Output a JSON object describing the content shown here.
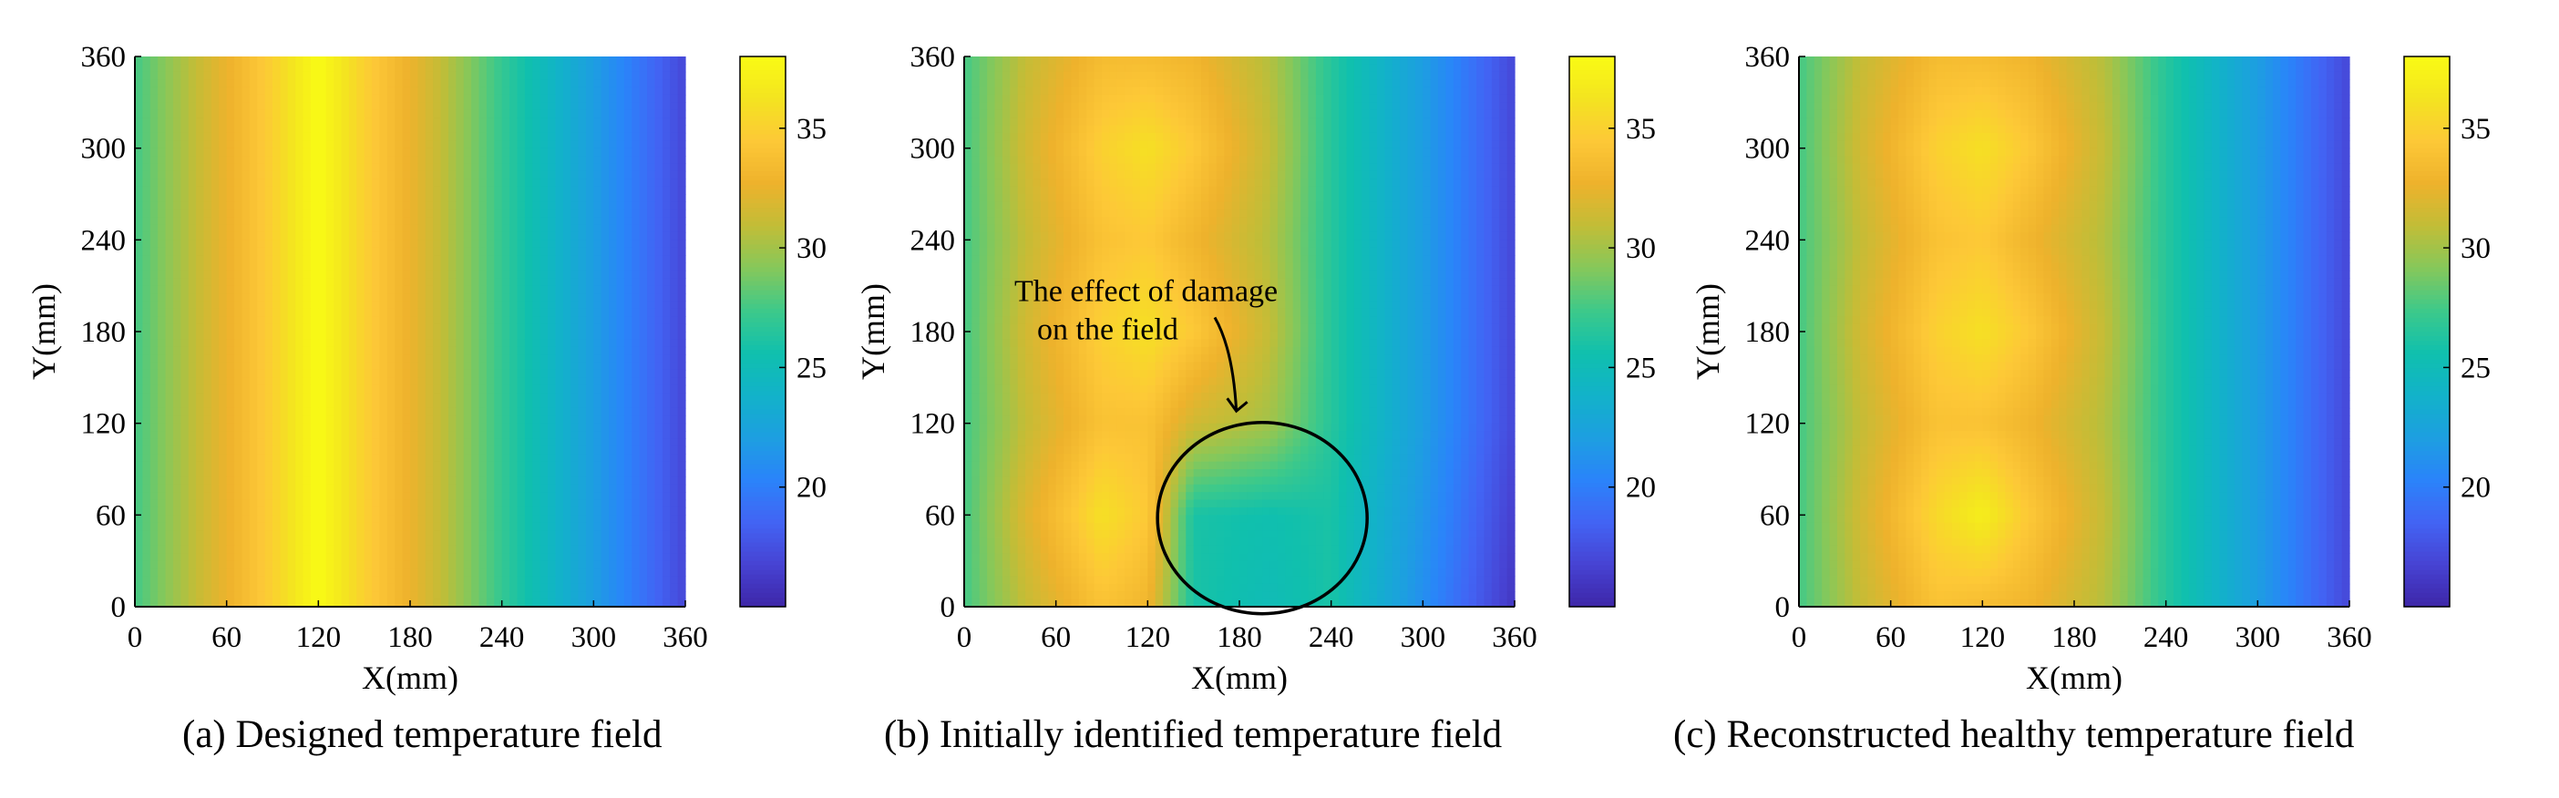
{
  "colormap": [
    "#3e26a8",
    "#4743d3",
    "#4264f4",
    "#2a84fa",
    "#1d9fe0",
    "#12b2c9",
    "#10c0ad",
    "#3ec98a",
    "#86c85a",
    "#c2bd37",
    "#eeb22c",
    "#fdc837",
    "#f4e420",
    "#f9fb14"
  ],
  "chart_data": [
    {
      "type": "heatmap",
      "id": "a",
      "caption": "(a) Designed temperature field",
      "xlabel": "X(mm)",
      "ylabel": "Y(mm)",
      "xlim": [
        0,
        360
      ],
      "ylim": [
        0,
        360
      ],
      "xticks": [
        "0",
        "60",
        "120",
        "180",
        "240",
        "300",
        "360"
      ],
      "yticks": [
        "0",
        "60",
        "120",
        "180",
        "240",
        "300",
        "360"
      ],
      "clim": [
        15,
        38
      ],
      "colorbar_ticks": [
        "20",
        "25",
        "30",
        "35"
      ],
      "x": [
        0,
        40,
        90,
        120,
        150,
        200,
        240,
        300,
        360
      ],
      "y": [
        0,
        360
      ],
      "z": [
        [
          27.5,
          31,
          35,
          38,
          35,
          31,
          27,
          22,
          17
        ],
        [
          27.5,
          31,
          35,
          38,
          35,
          31,
          27,
          22,
          17
        ]
      ],
      "annotation": null
    },
    {
      "type": "heatmap",
      "id": "b",
      "caption": "(b) Initially identified temperature field",
      "xlabel": "X(mm)",
      "ylabel": "Y(mm)",
      "xlim": [
        0,
        360
      ],
      "ylim": [
        0,
        360
      ],
      "xticks": [
        "0",
        "60",
        "120",
        "180",
        "240",
        "300",
        "360"
      ],
      "yticks": [
        "0",
        "60",
        "120",
        "180",
        "240",
        "300",
        "360"
      ],
      "clim": [
        15,
        38
      ],
      "colorbar_ticks": [
        "20",
        "25",
        "30",
        "35"
      ],
      "x": [
        0,
        40,
        90,
        120,
        150,
        200,
        240,
        300,
        360
      ],
      "y": [
        0,
        60,
        120,
        180,
        240,
        300,
        360
      ],
      "z": [
        [
          27.5,
          31,
          34,
          33,
          26,
          25,
          26,
          21,
          16
        ],
        [
          27.5,
          32,
          36,
          34.5,
          26,
          25.5,
          26,
          21.5,
          16.5
        ],
        [
          27.5,
          31,
          34,
          34,
          31.5,
          30,
          26.5,
          22,
          17
        ],
        [
          27.5,
          31.5,
          35,
          36,
          34.5,
          31,
          26.5,
          22,
          17
        ],
        [
          27.5,
          31,
          34,
          34.5,
          33,
          30.5,
          26.5,
          22,
          17
        ],
        [
          27.5,
          31.5,
          35,
          36,
          34.5,
          31,
          26.5,
          22,
          17
        ],
        [
          27.5,
          31,
          33.5,
          33.5,
          33,
          30.5,
          26.5,
          22,
          17
        ]
      ],
      "annotation": {
        "text_line1": "The effect of damage",
        "text_line2": "on the field"
      }
    },
    {
      "type": "heatmap",
      "id": "c",
      "caption": "(c) Reconstructed healthy temperature field",
      "xlabel": "X(mm)",
      "ylabel": "Y(mm)",
      "xlim": [
        0,
        360
      ],
      "ylim": [
        0,
        360
      ],
      "xticks": [
        "0",
        "60",
        "120",
        "180",
        "240",
        "300",
        "360"
      ],
      "yticks": [
        "0",
        "60",
        "120",
        "180",
        "240",
        "300",
        "360"
      ],
      "clim": [
        15,
        38
      ],
      "colorbar_ticks": [
        "20",
        "25",
        "30",
        "35"
      ],
      "x": [
        0,
        40,
        90,
        120,
        150,
        200,
        240,
        300,
        360
      ],
      "y": [
        0,
        60,
        120,
        180,
        240,
        300,
        360
      ],
      "z": [
        [
          27.5,
          31,
          34,
          33.5,
          33,
          30.5,
          26.5,
          22,
          17
        ],
        [
          27.5,
          31.5,
          35.5,
          37,
          34.5,
          31,
          26.5,
          22,
          17
        ],
        [
          27.5,
          31,
          34,
          34,
          33,
          30.5,
          26.5,
          22,
          17
        ],
        [
          27.5,
          31.5,
          35,
          36,
          34.5,
          31,
          26.5,
          22,
          17
        ],
        [
          27.5,
          31,
          34,
          34.5,
          33,
          30.5,
          26.5,
          22,
          17
        ],
        [
          27.5,
          31.5,
          35,
          36,
          34.5,
          31,
          26.5,
          22,
          17
        ],
        [
          27.5,
          31,
          33.5,
          33.5,
          33,
          30.5,
          26.5,
          22,
          17
        ]
      ],
      "annotation": null
    }
  ]
}
